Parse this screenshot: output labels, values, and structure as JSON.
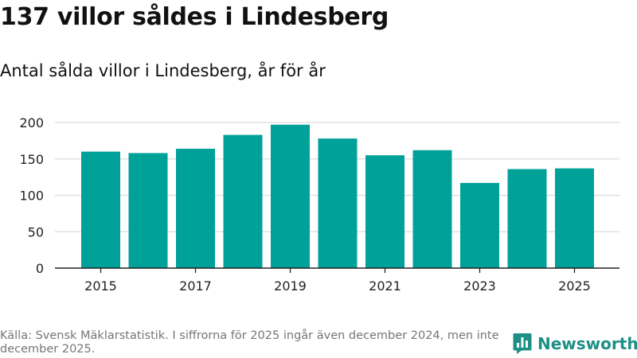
{
  "title": "137 villor såldes i Lindesberg",
  "subtitle": "Antal sålda villor i Lindesberg, år för år",
  "footer": {
    "source": "Källa: Svensk Mäklarstatistik. I siffrorna för 2025 ingår även december 2024, men inte december 2025."
  },
  "brand": {
    "name": "Newsworthy",
    "icon": "newsworthy-logo-icon"
  },
  "colors": {
    "bar": "#00a199",
    "grid": "#dcdcdc",
    "axis": "#222222",
    "brand": "#1d8f86"
  },
  "chart_data": {
    "type": "bar",
    "title": "137 villor såldes i Lindesberg",
    "subtitle": "Antal sålda villor i Lindesberg, år för år",
    "xlabel": "",
    "ylabel": "",
    "categories": [
      "2015",
      "2016",
      "2017",
      "2018",
      "2019",
      "2020",
      "2021",
      "2022",
      "2023",
      "2024",
      "2025"
    ],
    "values": [
      160,
      158,
      164,
      183,
      197,
      178,
      155,
      162,
      117,
      136,
      137
    ],
    "x_tick_labels": [
      "2015",
      "2017",
      "2019",
      "2021",
      "2023",
      "2025"
    ],
    "y_ticks": [
      0,
      50,
      100,
      150,
      200
    ],
    "ylim": [
      0,
      200
    ],
    "grid": true
  }
}
